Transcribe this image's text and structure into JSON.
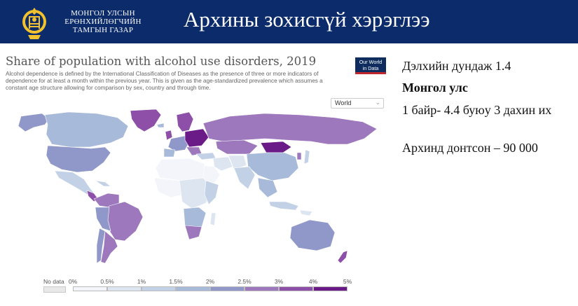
{
  "header": {
    "org_line1": "МОНГОЛ УЛСЫН",
    "org_line2": "ЕРӨНХИЙЛӨГЧИЙН",
    "org_line3": "ТАМГЫН ГАЗАР",
    "title": "Архины зохисгүй хэрэглээ",
    "emblem_icon": "soyombo-emblem-icon"
  },
  "chart": {
    "title": "Share of population with alcohol use disorders, 2019",
    "subtitle": "Alcohol dependence is defined by the International Classification of Diseases as the presence of three or more indicators of dependence for at least a month within the previous year. This is given as the age-standardized prevalence which assumes a constant age structure allowing for comparison by sex, country and through time.",
    "logo_line1": "Our World",
    "logo_line2": "in Data",
    "region_selector": "World",
    "legend": {
      "no_data": "No data",
      "ticks": [
        "0%",
        "0.5%",
        "1%",
        "1.5%",
        "2%",
        "2.5%",
        "3%",
        "4%",
        "5%"
      ],
      "colors": [
        "#f3f5fa",
        "#dde5f1",
        "#c3d1e6",
        "#a8bad9",
        "#8f98c9",
        "#9d78bd",
        "#8d4fa8",
        "#6a1b87"
      ]
    }
  },
  "chart_data": {
    "type": "heatmap",
    "title": "Share of population with alcohol use disorders, 2019",
    "bins": [
      "0%",
      "0.5%",
      "1%",
      "1.5%",
      "2%",
      "2.5%",
      "3%",
      "4%",
      "5%"
    ]
  },
  "facts": {
    "line1": "Дэлхийн дундаж 1.4",
    "line2": "Монгол улс",
    "line3": "1 байр- 4.4 буюу 3 дахин их",
    "line4": "Архинд донтсон – 90 000"
  }
}
